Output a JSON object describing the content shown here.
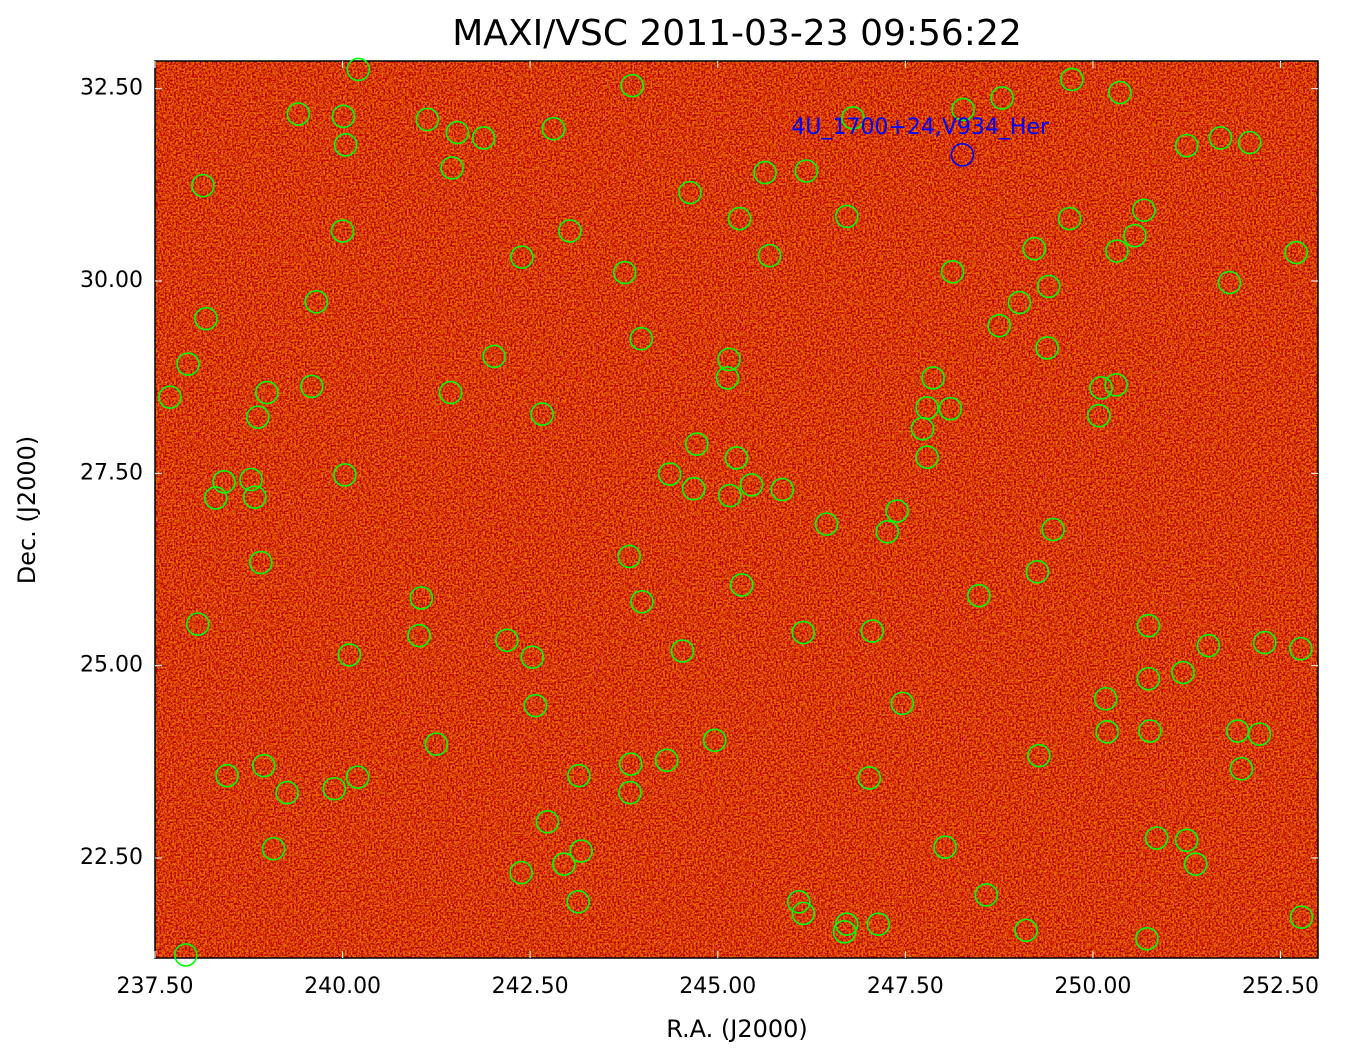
{
  "chart_data": {
    "type": "scatter",
    "title": "MAXI/VSC 2011-03-23 09:56:22",
    "x_label": "R.A. (J2000)",
    "y_label": "Dec. (J2000)",
    "xlim": [
      237.5,
      253.0
    ],
    "ylim": [
      21.2,
      32.86
    ],
    "xticks": [
      {
        "value": 237.5,
        "label": "237.50"
      },
      {
        "value": 240,
        "label": "240.00"
      },
      {
        "value": 242.5,
        "label": "242.50"
      },
      {
        "value": 245,
        "label": "245.00"
      },
      {
        "value": 247.5,
        "label": "247.50"
      },
      {
        "value": 250,
        "label": "250.00"
      },
      {
        "value": 252.5,
        "label": "252.50"
      }
    ],
    "yticks": [
      {
        "value": 22.5,
        "label": "22.50"
      },
      {
        "value": 25,
        "label": "25.00"
      },
      {
        "value": 27.5,
        "label": "27.50"
      },
      {
        "value": 30,
        "label": "30.00"
      },
      {
        "value": 32.5,
        "label": "32.50"
      }
    ],
    "series": [
      {
        "color": "#00ff00",
        "x": [
          240.21,
          243.86,
          249.72,
          250.36,
          248.79,
          248.27,
          239.41,
          240.01,
          241.13,
          246.8,
          242.81,
          241.53,
          241.88,
          240.04,
          251.25,
          251.7,
          252.09,
          241.46,
          245.63,
          246.18,
          238.14,
          244.63,
          250.68,
          245.29,
          246.72,
          249.69,
          243.03,
          240.0,
          250.56,
          242.39,
          245.69,
          249.22,
          250.32,
          252.71,
          243.76,
          248.13,
          251.82,
          249.41,
          239.65,
          249.02,
          238.18,
          248.75,
          243.98,
          249.39,
          242.02,
          245.15,
          237.94,
          245.13,
          247.87,
          239.59,
          238.99,
          241.44,
          237.7,
          250.11,
          250.31,
          247.79,
          248.1,
          238.87,
          242.66,
          250.08,
          247.73,
          244.72,
          247.79,
          245.25,
          240.03,
          238.78,
          238.42,
          244.36,
          245.45,
          244.68,
          245.86,
          245.16,
          238.83,
          238.31,
          247.39,
          246.45,
          247.26,
          249.47,
          243.82,
          238.91,
          249.26,
          245.32,
          241.05,
          248.48,
          243.99,
          238.07,
          250.74,
          241.02,
          246.14,
          247.06,
          242.19,
          251.54,
          252.29,
          252.77,
          242.53,
          244.53,
          240.09,
          251.2,
          250.74,
          250.17,
          242.57,
          247.46,
          250.19,
          250.76,
          251.93,
          252.22,
          244.96,
          241.25,
          249.28,
          244.32,
          243.84,
          238.95,
          251.98,
          238.46,
          243.15,
          240.2,
          247.02,
          239.89,
          239.26,
          243.83,
          242.73,
          250.85,
          251.25,
          239.08,
          243.18,
          248.03,
          242.95,
          251.37,
          242.38,
          248.58,
          243.14,
          246.08,
          246.14,
          246.72,
          247.14,
          246.69,
          249.11,
          252.78,
          250.72,
          237.91
        ],
        "y": [
          32.75,
          32.54,
          32.62,
          32.45,
          32.38,
          32.23,
          32.17,
          32.14,
          32.1,
          32.12,
          31.98,
          31.93,
          31.86,
          31.77,
          31.76,
          31.86,
          31.8,
          31.47,
          31.41,
          31.43,
          31.24,
          31.15,
          30.92,
          30.81,
          30.84,
          30.81,
          30.65,
          30.65,
          30.59,
          30.31,
          30.33,
          30.42,
          30.39,
          30.37,
          30.11,
          30.12,
          29.98,
          29.93,
          29.73,
          29.72,
          29.51,
          29.42,
          29.25,
          29.13,
          29.02,
          28.98,
          28.92,
          28.74,
          28.74,
          28.63,
          28.55,
          28.55,
          28.49,
          28.61,
          28.65,
          28.35,
          28.34,
          28.23,
          28.27,
          28.25,
          28.08,
          27.88,
          27.71,
          27.7,
          27.48,
          27.42,
          27.39,
          27.49,
          27.35,
          27.3,
          27.29,
          27.21,
          27.19,
          27.18,
          27.01,
          26.84,
          26.74,
          26.77,
          26.42,
          26.34,
          26.22,
          26.05,
          25.88,
          25.91,
          25.83,
          25.54,
          25.52,
          25.39,
          25.43,
          25.45,
          25.33,
          25.26,
          25.3,
          25.22,
          25.11,
          25.19,
          25.14,
          24.91,
          24.83,
          24.57,
          24.48,
          24.51,
          24.14,
          24.15,
          24.15,
          24.11,
          24.03,
          23.98,
          23.83,
          23.77,
          23.72,
          23.7,
          23.66,
          23.57,
          23.57,
          23.55,
          23.54,
          23.4,
          23.35,
          23.35,
          22.97,
          22.76,
          22.73,
          22.62,
          22.59,
          22.64,
          22.42,
          22.42,
          22.31,
          22.02,
          21.93,
          21.93,
          21.78,
          21.64,
          21.64,
          21.54,
          21.56,
          21.73,
          21.45,
          21.24
        ]
      }
    ],
    "annotation": {
      "text": "4U_1700+24,V934_Her",
      "x": 248.26,
      "y": 31.64,
      "color": "#0000ff"
    }
  }
}
